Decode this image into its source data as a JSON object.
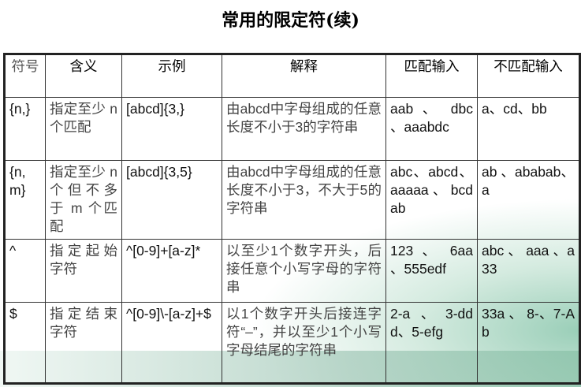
{
  "title": "常用的限定符(续)",
  "table": {
    "headers": [
      "符号",
      "含义",
      "示例",
      "解释",
      "匹配输入",
      "不匹配输入"
    ],
    "rows": [
      [
        "{n,}",
        "指定至少 n 个匹配",
        "[abcd]{3,}",
        "由abcd中字母组成的任意长度不小于3的字符串",
        "aab 、 dbc 、aaabdc",
        "a、cd、bb"
      ],
      [
        "{n, m}",
        "指定至少 n 个但不多于 m 个匹配",
        "[abcd]{3,5}",
        "由abcd中字母组成的任意长度不小于3，不大于5的字符串",
        "abc、abcd、aaaaa 、 bcdab",
        "ab 、ababab、a"
      ],
      [
        "^",
        "指定起始字符",
        "^[0-9]+[a-z]*",
        "以至少1个数字开头，后接任意个小写字母的字符串",
        "123 、 6aa 、555edf",
        "abc 、 aaa 、a33"
      ],
      [
        "$",
        "指定结束字符",
        "^[0-9]\\-[a-z]+$",
        "以1个数字开头后接连字符“–”，并以至少1个小写字母结尾的字符串",
        "2-a、3-ddd、5-efg",
        "33a 、 8-、7-Ab"
      ]
    ]
  },
  "colors": {
    "accent": "#8cc3aa",
    "border": "#222222"
  }
}
